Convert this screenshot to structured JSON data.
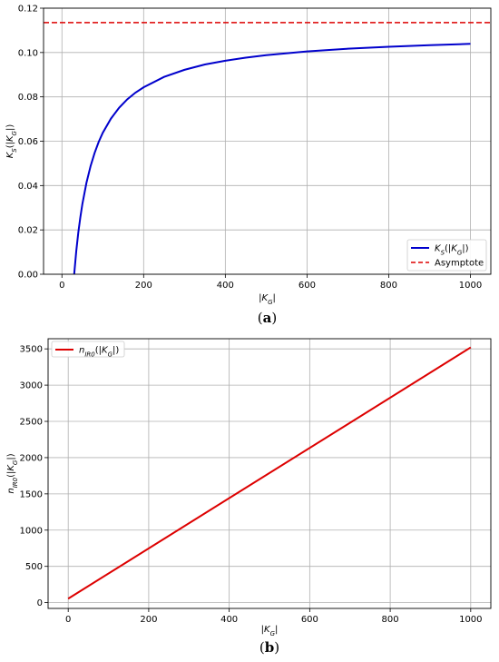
{
  "chart_data": [
    {
      "type": "line",
      "panel_label": "(a)",
      "xlabel": "|K_G|",
      "ylabel": "K_S(|K_G|)",
      "xlim": [
        -45,
        1050
      ],
      "ylim": [
        0,
        0.12
      ],
      "xticks": [
        0,
        200,
        400,
        600,
        800,
        1000
      ],
      "yticks": [
        0.0,
        0.02,
        0.04,
        0.06,
        0.08,
        0.1,
        0.12
      ],
      "ytick_labels": [
        "0.00",
        "0.02",
        "0.04",
        "0.06",
        "0.08",
        "0.10",
        "0.12"
      ],
      "grid": true,
      "legend": "lower-right",
      "series": [
        {
          "name": "K_S(|K_G|)",
          "color": "#0000cc",
          "style": "solid",
          "x": [
            30,
            35,
            40,
            45,
            50,
            60,
            70,
            80,
            90,
            100,
            120,
            140,
            160,
            180,
            200,
            250,
            300,
            350,
            400,
            450,
            500,
            600,
            700,
            800,
            900,
            1000
          ],
          "y": [
            0.0,
            0.0103,
            0.0187,
            0.0256,
            0.0316,
            0.0412,
            0.0487,
            0.0547,
            0.0597,
            0.0638,
            0.0702,
            0.0751,
            0.0789,
            0.0819,
            0.0843,
            0.089,
            0.0922,
            0.0946,
            0.0963,
            0.0977,
            0.0988,
            0.1005,
            0.1017,
            0.1026,
            0.1033,
            0.1039
          ]
        },
        {
          "name": "Asymptote",
          "color": "#dd0000",
          "style": "dashed",
          "y_const": 0.1135
        }
      ]
    },
    {
      "type": "line",
      "panel_label": "(b)",
      "xlabel": "|K_G|",
      "ylabel": "n_IR0(|K_G|)",
      "xlim": [
        -50,
        1050
      ],
      "ylim": [
        -80,
        3640
      ],
      "xticks": [
        0,
        200,
        400,
        600,
        800,
        1000
      ],
      "yticks": [
        0,
        500,
        1000,
        1500,
        2000,
        2500,
        3000,
        3500
      ],
      "ytick_labels": [
        "0",
        "500",
        "1000",
        "1500",
        "2000",
        "2500",
        "3000",
        "3500"
      ],
      "grid": true,
      "legend": "top-left",
      "series": [
        {
          "name": "n_IR0(|K_G|)",
          "color": "#dd0000",
          "style": "solid",
          "x": [
            0,
            1000
          ],
          "y": [
            55,
            3520
          ]
        }
      ]
    }
  ]
}
